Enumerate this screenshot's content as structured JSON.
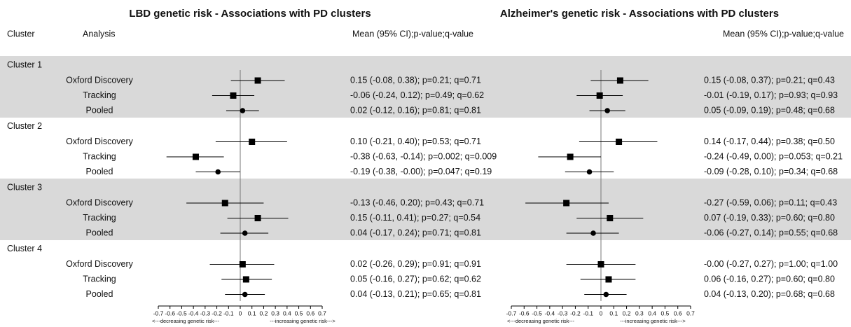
{
  "chart_data": [
    {
      "type": "forest",
      "title": "LBD genetic risk - Associations with PD clusters",
      "headers": {
        "cluster": "Cluster",
        "analysis": "Analysis",
        "estimate": "Mean (95% CI);p-value;q-value"
      },
      "xlim": [
        -0.7,
        0.7
      ],
      "xticks": [
        -0.7,
        -0.6,
        -0.5,
        -0.4,
        -0.3,
        -0.2,
        -0.1,
        0,
        0.1,
        0.2,
        0.3,
        0.4,
        0.5,
        0.6,
        0.7
      ],
      "axis_labels": [
        "<---decreasing genetic risk---",
        "---increasing genetic risk--->"
      ],
      "groups": [
        {
          "name": "Cluster 1",
          "rows": [
            {
              "name": "Oxford Discovery",
              "marker": "square",
              "mean": 0.15,
              "lo": -0.08,
              "hi": 0.38,
              "value_label": "0.15 (-0.08, 0.38); p=0.21; q=0.71"
            },
            {
              "name": "Tracking",
              "marker": "square",
              "mean": -0.06,
              "lo": -0.24,
              "hi": 0.12,
              "value_label": "-0.06 (-0.24, 0.12); p=0.49; q=0.62"
            },
            {
              "name": "Pooled",
              "marker": "circle",
              "mean": 0.02,
              "lo": -0.12,
              "hi": 0.16,
              "value_label": "0.02 (-0.12, 0.16); p=0.81; q=0.81"
            }
          ]
        },
        {
          "name": "Cluster 2",
          "rows": [
            {
              "name": "Oxford Discovery",
              "marker": "square",
              "mean": 0.1,
              "lo": -0.21,
              "hi": 0.4,
              "value_label": "0.10 (-0.21, 0.40); p=0.53; q=0.71"
            },
            {
              "name": "Tracking",
              "marker": "square",
              "mean": -0.38,
              "lo": -0.63,
              "hi": -0.14,
              "value_label": "-0.38 (-0.63, -0.14); p=0.002; q=0.009"
            },
            {
              "name": "Pooled",
              "marker": "circle",
              "mean": -0.19,
              "lo": -0.38,
              "hi": -0.0,
              "value_label": "-0.19 (-0.38, -0.00); p=0.047; q=0.19"
            }
          ]
        },
        {
          "name": "Cluster 3",
          "rows": [
            {
              "name": "Oxford Discovery",
              "marker": "square",
              "mean": -0.13,
              "lo": -0.46,
              "hi": 0.2,
              "value_label": "-0.13 (-0.46, 0.20); p=0.43; q=0.71"
            },
            {
              "name": "Tracking",
              "marker": "square",
              "mean": 0.15,
              "lo": -0.11,
              "hi": 0.41,
              "value_label": "0.15 (-0.11, 0.41); p=0.27; q=0.54"
            },
            {
              "name": "Pooled",
              "marker": "circle",
              "mean": 0.04,
              "lo": -0.17,
              "hi": 0.24,
              "value_label": "0.04 (-0.17, 0.24); p=0.71; q=0.81"
            }
          ]
        },
        {
          "name": "Cluster 4",
          "rows": [
            {
              "name": "Oxford Discovery",
              "marker": "square",
              "mean": 0.02,
              "lo": -0.26,
              "hi": 0.29,
              "value_label": "0.02 (-0.26, 0.29); p=0.91; q=0.91"
            },
            {
              "name": "Tracking",
              "marker": "square",
              "mean": 0.05,
              "lo": -0.16,
              "hi": 0.27,
              "value_label": "0.05 (-0.16, 0.27); p=0.62; q=0.62"
            },
            {
              "name": "Pooled",
              "marker": "circle",
              "mean": 0.04,
              "lo": -0.13,
              "hi": 0.21,
              "value_label": "0.04 (-0.13, 0.21); p=0.65; q=0.81"
            }
          ]
        }
      ]
    },
    {
      "type": "forest",
      "title": "Alzheimer's genetic risk - Associations with PD clusters",
      "headers": {
        "estimate": "Mean (95% CI);p-value;q-value"
      },
      "xlim": [
        -0.7,
        0.7
      ],
      "xticks": [
        -0.7,
        -0.6,
        -0.5,
        -0.4,
        -0.3,
        -0.2,
        -0.1,
        0,
        0.1,
        0.2,
        0.3,
        0.4,
        0.5,
        0.6,
        0.7
      ],
      "axis_labels": [
        "<---decreasing genetic risk---",
        "---increasing genetic risk--->"
      ],
      "groups": [
        {
          "rows": [
            {
              "marker": "square",
              "mean": 0.15,
              "lo": -0.08,
              "hi": 0.37,
              "value_label": "0.15 (-0.08, 0.37); p=0.21; q=0.43"
            },
            {
              "marker": "square",
              "mean": -0.01,
              "lo": -0.19,
              "hi": 0.17,
              "value_label": "-0.01 (-0.19, 0.17); p=0.93; q=0.93"
            },
            {
              "marker": "circle",
              "mean": 0.05,
              "lo": -0.09,
              "hi": 0.19,
              "value_label": "0.05 (-0.09, 0.19); p=0.48; q=0.68"
            }
          ]
        },
        {
          "rows": [
            {
              "marker": "square",
              "mean": 0.14,
              "lo": -0.17,
              "hi": 0.44,
              "value_label": "0.14 (-0.17, 0.44); p=0.38; q=0.50"
            },
            {
              "marker": "square",
              "mean": -0.24,
              "lo": -0.49,
              "hi": 0.0,
              "value_label": "-0.24 (-0.49, 0.00); p=0.053; q=0.21"
            },
            {
              "marker": "circle",
              "mean": -0.09,
              "lo": -0.28,
              "hi": 0.1,
              "value_label": "-0.09 (-0.28, 0.10); p=0.34; q=0.68"
            }
          ]
        },
        {
          "rows": [
            {
              "marker": "square",
              "mean": -0.27,
              "lo": -0.59,
              "hi": 0.06,
              "value_label": "-0.27 (-0.59, 0.06); p=0.11; q=0.43"
            },
            {
              "marker": "square",
              "mean": 0.07,
              "lo": -0.19,
              "hi": 0.33,
              "value_label": "0.07 (-0.19, 0.33); p=0.60; q=0.80"
            },
            {
              "marker": "circle",
              "mean": -0.06,
              "lo": -0.27,
              "hi": 0.14,
              "value_label": "-0.06 (-0.27, 0.14); p=0.55; q=0.68"
            }
          ]
        },
        {
          "rows": [
            {
              "marker": "square",
              "mean": -0.0,
              "lo": -0.27,
              "hi": 0.27,
              "value_label": "-0.00 (-0.27, 0.27); p=1.00; q=1.00"
            },
            {
              "marker": "square",
              "mean": 0.06,
              "lo": -0.16,
              "hi": 0.27,
              "value_label": "0.06 (-0.16, 0.27); p=0.60; q=0.80"
            },
            {
              "marker": "circle",
              "mean": 0.04,
              "lo": -0.13,
              "hi": 0.2,
              "value_label": "0.04 (-0.13, 0.20); p=0.68; q=0.68"
            }
          ]
        }
      ]
    }
  ]
}
